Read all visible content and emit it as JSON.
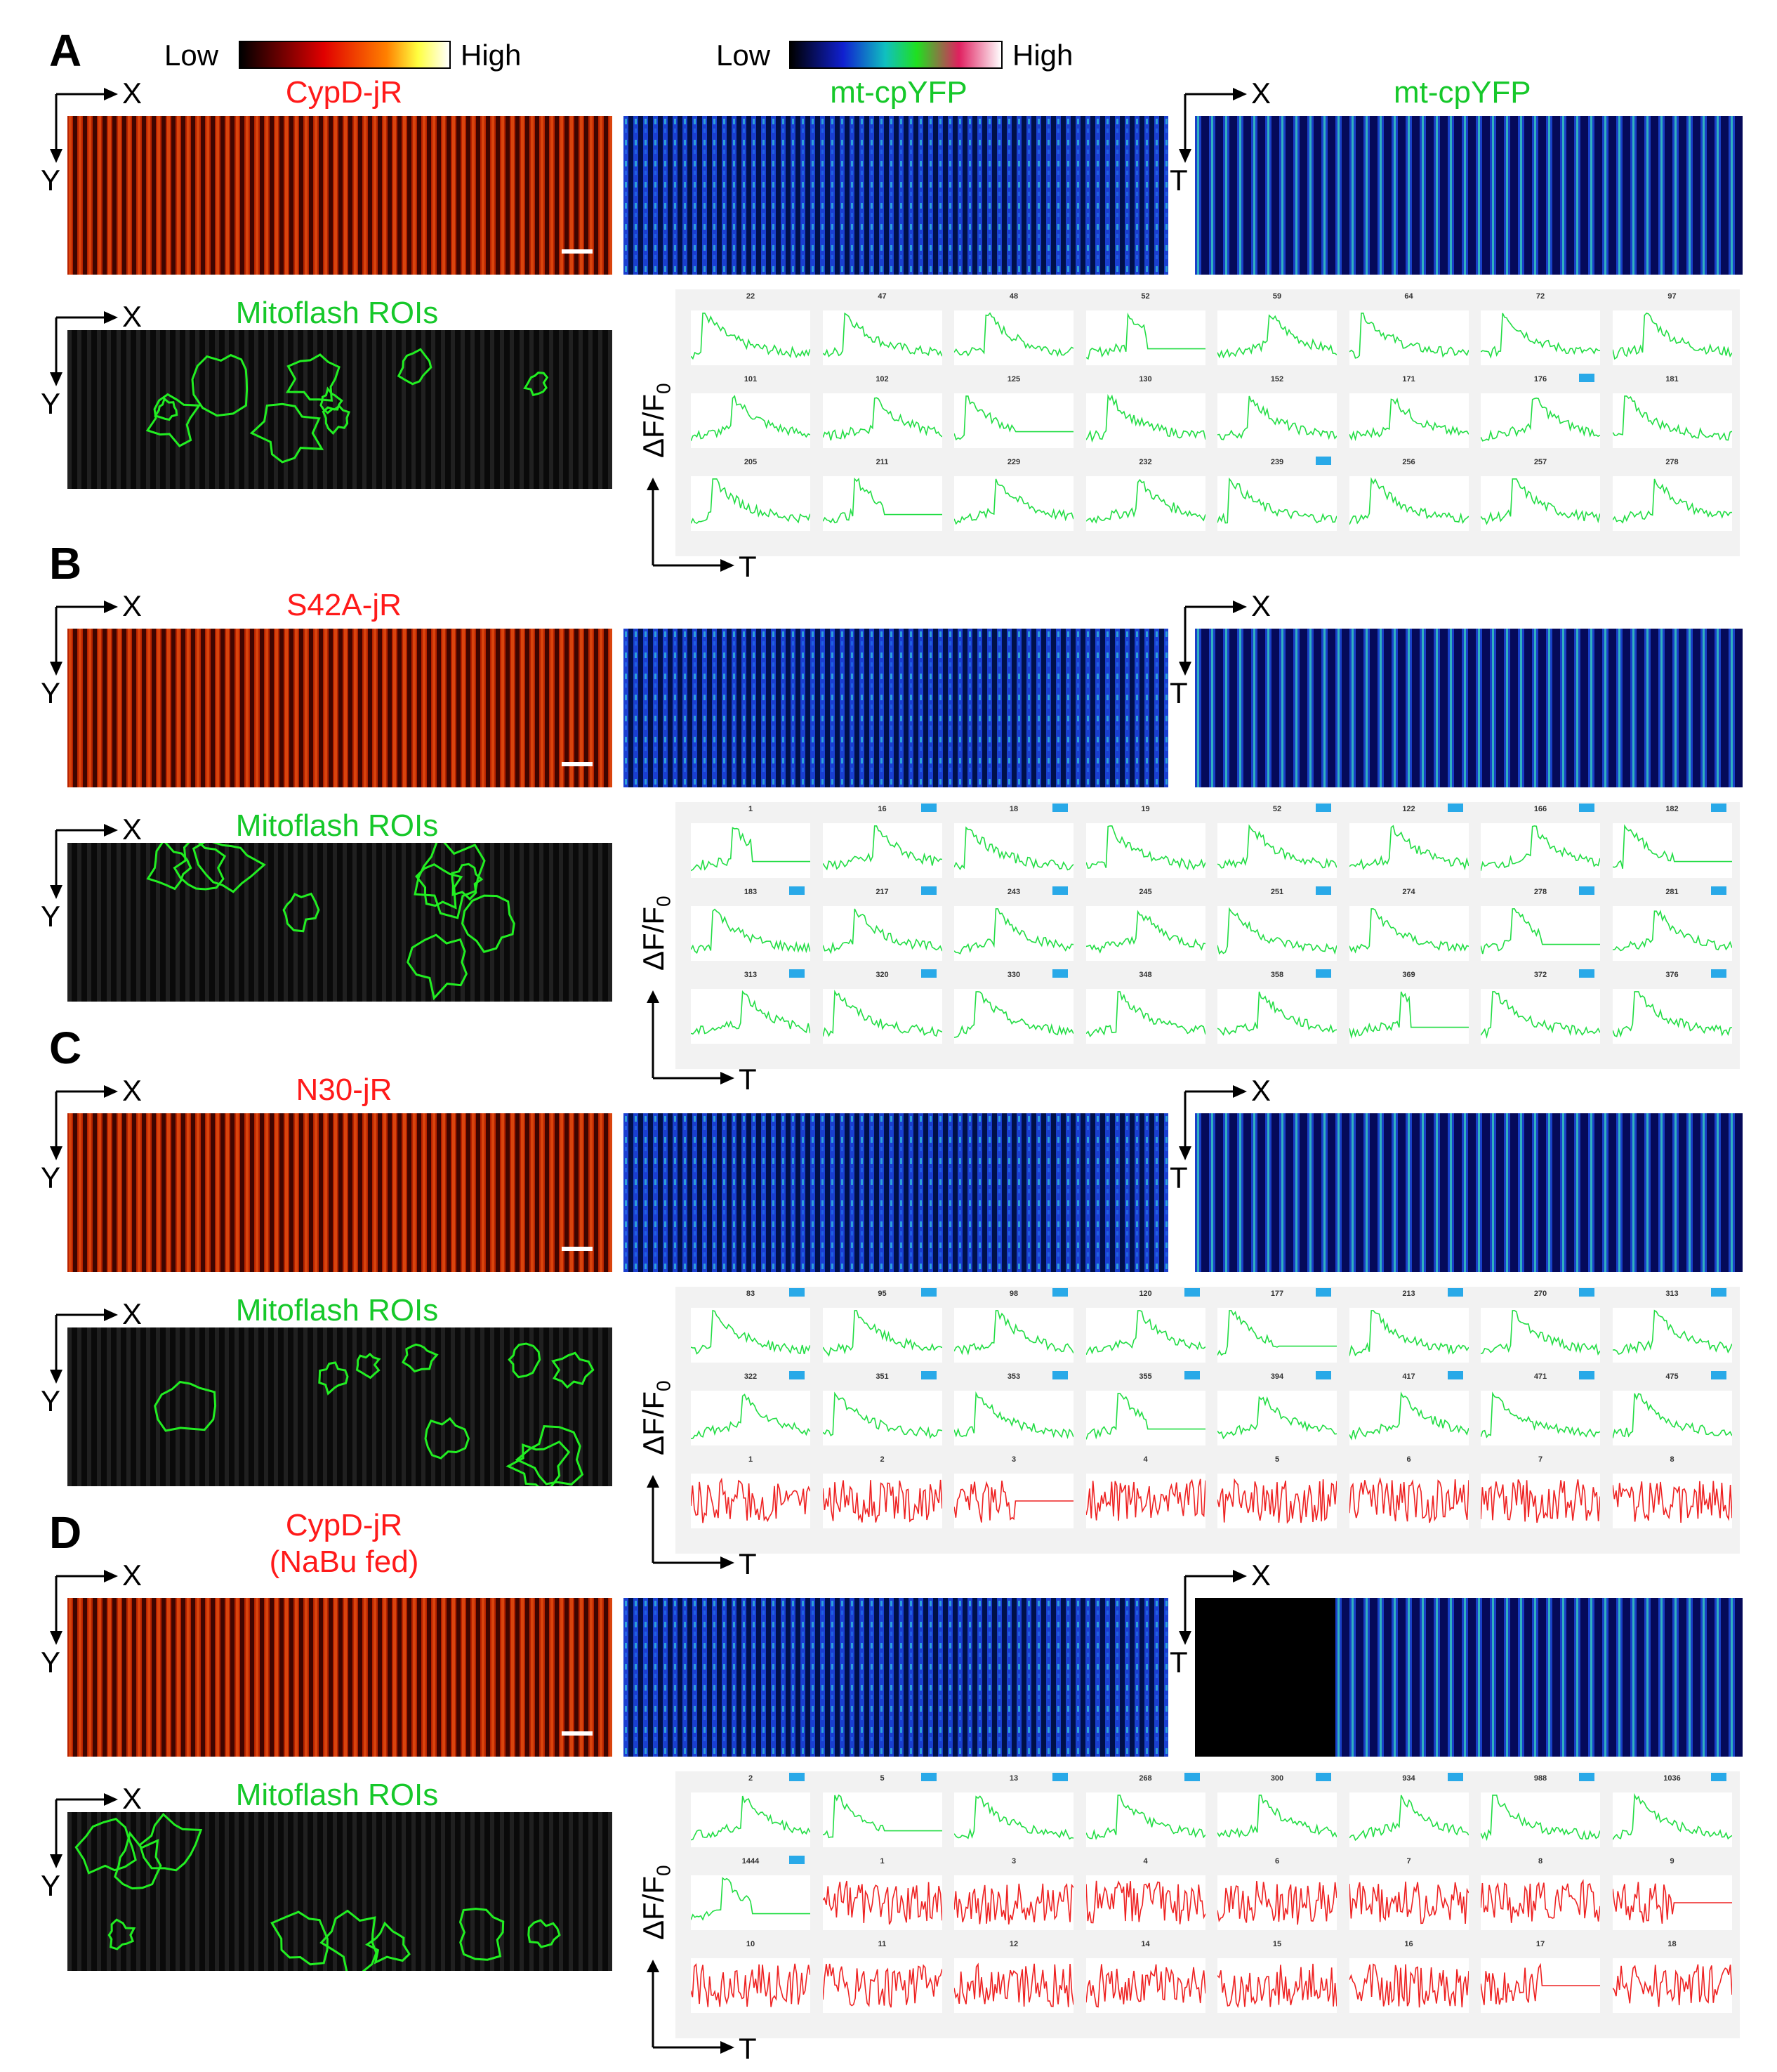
{
  "colorbars": {
    "red_low": "Low",
    "red_high": "High",
    "blue_low": "Low",
    "blue_high": "High"
  },
  "axis": {
    "x": "X",
    "y": "Y",
    "t": "T",
    "df": "ΔF/F",
    "df_sub": "0"
  },
  "panels": [
    {
      "letter": "A",
      "red_label": "CypD-jR",
      "red_label2": "",
      "green_label": "mt-cpYFP",
      "line_label": "mt-cpYFP",
      "roi_label": "Mitoflash ROIs",
      "traces": [
        {
          "n": "22",
          "c": "g",
          "f": false
        },
        {
          "n": "47",
          "c": "g",
          "f": false
        },
        {
          "n": "48",
          "c": "g",
          "f": false
        },
        {
          "n": "52",
          "c": "g",
          "f": false
        },
        {
          "n": "59",
          "c": "g",
          "f": false
        },
        {
          "n": "64",
          "c": "g",
          "f": false
        },
        {
          "n": "72",
          "c": "g",
          "f": false
        },
        {
          "n": "97",
          "c": "g",
          "f": false
        },
        {
          "n": "101",
          "c": "g",
          "f": false
        },
        {
          "n": "102",
          "c": "g",
          "f": false
        },
        {
          "n": "125",
          "c": "g",
          "f": false
        },
        {
          "n": "130",
          "c": "g",
          "f": false
        },
        {
          "n": "152",
          "c": "g",
          "f": false
        },
        {
          "n": "171",
          "c": "g",
          "f": false
        },
        {
          "n": "176",
          "c": "g",
          "f": true
        },
        {
          "n": "181",
          "c": "g",
          "f": false
        },
        {
          "n": "205",
          "c": "g",
          "f": false
        },
        {
          "n": "211",
          "c": "g",
          "f": false
        },
        {
          "n": "229",
          "c": "g",
          "f": false
        },
        {
          "n": "232",
          "c": "g",
          "f": false
        },
        {
          "n": "239",
          "c": "g",
          "f": true
        },
        {
          "n": "256",
          "c": "g",
          "f": false
        },
        {
          "n": "257",
          "c": "g",
          "f": false
        },
        {
          "n": "278",
          "c": "g",
          "f": false
        }
      ]
    },
    {
      "letter": "B",
      "red_label": "S42A-jR",
      "red_label2": "",
      "green_label": "",
      "line_label": "",
      "roi_label": "Mitoflash ROIs",
      "traces": [
        {
          "n": "1",
          "c": "g",
          "f": false
        },
        {
          "n": "16",
          "c": "g",
          "f": true
        },
        {
          "n": "18",
          "c": "g",
          "f": true
        },
        {
          "n": "19",
          "c": "g",
          "f": false
        },
        {
          "n": "52",
          "c": "g",
          "f": true
        },
        {
          "n": "122",
          "c": "g",
          "f": true
        },
        {
          "n": "166",
          "c": "g",
          "f": true
        },
        {
          "n": "182",
          "c": "g",
          "f": true
        },
        {
          "n": "183",
          "c": "g",
          "f": true
        },
        {
          "n": "217",
          "c": "g",
          "f": true
        },
        {
          "n": "243",
          "c": "g",
          "f": true
        },
        {
          "n": "245",
          "c": "g",
          "f": false
        },
        {
          "n": "251",
          "c": "g",
          "f": true
        },
        {
          "n": "274",
          "c": "g",
          "f": false
        },
        {
          "n": "278",
          "c": "g",
          "f": true
        },
        {
          "n": "281",
          "c": "g",
          "f": true
        },
        {
          "n": "313",
          "c": "g",
          "f": true
        },
        {
          "n": "320",
          "c": "g",
          "f": true
        },
        {
          "n": "330",
          "c": "g",
          "f": true
        },
        {
          "n": "348",
          "c": "g",
          "f": false
        },
        {
          "n": "358",
          "c": "g",
          "f": true
        },
        {
          "n": "369",
          "c": "g",
          "f": false
        },
        {
          "n": "372",
          "c": "g",
          "f": true
        },
        {
          "n": "376",
          "c": "g",
          "f": true
        }
      ]
    },
    {
      "letter": "C",
      "red_label": "N30-jR",
      "red_label2": "",
      "green_label": "",
      "line_label": "",
      "roi_label": "Mitoflash ROIs",
      "traces": [
        {
          "n": "83",
          "c": "g",
          "f": true
        },
        {
          "n": "95",
          "c": "g",
          "f": true
        },
        {
          "n": "98",
          "c": "g",
          "f": true
        },
        {
          "n": "120",
          "c": "g",
          "f": true
        },
        {
          "n": "177",
          "c": "g",
          "f": true
        },
        {
          "n": "213",
          "c": "g",
          "f": true
        },
        {
          "n": "270",
          "c": "g",
          "f": true
        },
        {
          "n": "313",
          "c": "g",
          "f": true
        },
        {
          "n": "322",
          "c": "g",
          "f": true
        },
        {
          "n": "351",
          "c": "g",
          "f": true
        },
        {
          "n": "353",
          "c": "g",
          "f": true
        },
        {
          "n": "355",
          "c": "g",
          "f": true
        },
        {
          "n": "394",
          "c": "g",
          "f": true
        },
        {
          "n": "417",
          "c": "g",
          "f": true
        },
        {
          "n": "471",
          "c": "g",
          "f": true
        },
        {
          "n": "475",
          "c": "g",
          "f": true
        },
        {
          "n": "1",
          "c": "r",
          "f": false
        },
        {
          "n": "2",
          "c": "r",
          "f": false
        },
        {
          "n": "3",
          "c": "r",
          "f": false
        },
        {
          "n": "4",
          "c": "r",
          "f": false
        },
        {
          "n": "5",
          "c": "r",
          "f": false
        },
        {
          "n": "6",
          "c": "r",
          "f": false
        },
        {
          "n": "7",
          "c": "r",
          "f": false
        },
        {
          "n": "8",
          "c": "r",
          "f": false
        }
      ]
    },
    {
      "letter": "D",
      "red_label": "CypD-jR",
      "red_label2": "(NaBu fed)",
      "green_label": "",
      "line_label": "",
      "roi_label": "Mitoflash ROIs",
      "traces": [
        {
          "n": "2",
          "c": "g",
          "f": true
        },
        {
          "n": "5",
          "c": "g",
          "f": true
        },
        {
          "n": "13",
          "c": "g",
          "f": true
        },
        {
          "n": "268",
          "c": "g",
          "f": true
        },
        {
          "n": "300",
          "c": "g",
          "f": true
        },
        {
          "n": "934",
          "c": "g",
          "f": true
        },
        {
          "n": "988",
          "c": "g",
          "f": true
        },
        {
          "n": "1036",
          "c": "g",
          "f": true
        },
        {
          "n": "1444",
          "c": "g",
          "f": true
        },
        {
          "n": "1",
          "c": "r",
          "f": false
        },
        {
          "n": "3",
          "c": "r",
          "f": false
        },
        {
          "n": "4",
          "c": "r",
          "f": false
        },
        {
          "n": "6",
          "c": "r",
          "f": false
        },
        {
          "n": "7",
          "c": "r",
          "f": false
        },
        {
          "n": "8",
          "c": "r",
          "f": false
        },
        {
          "n": "9",
          "c": "r",
          "f": false
        },
        {
          "n": "10",
          "c": "r",
          "f": false
        },
        {
          "n": "11",
          "c": "r",
          "f": false
        },
        {
          "n": "12",
          "c": "r",
          "f": false
        },
        {
          "n": "14",
          "c": "r",
          "f": false
        },
        {
          "n": "15",
          "c": "r",
          "f": false
        },
        {
          "n": "16",
          "c": "r",
          "f": false
        },
        {
          "n": "17",
          "c": "r",
          "f": false
        },
        {
          "n": "18",
          "c": "r",
          "f": false
        }
      ]
    }
  ],
  "colors": {
    "green_trace": "#22dd44",
    "red_trace": "#ee2222",
    "roi_outline": "#22ee22",
    "flag": "#29a9e8"
  }
}
